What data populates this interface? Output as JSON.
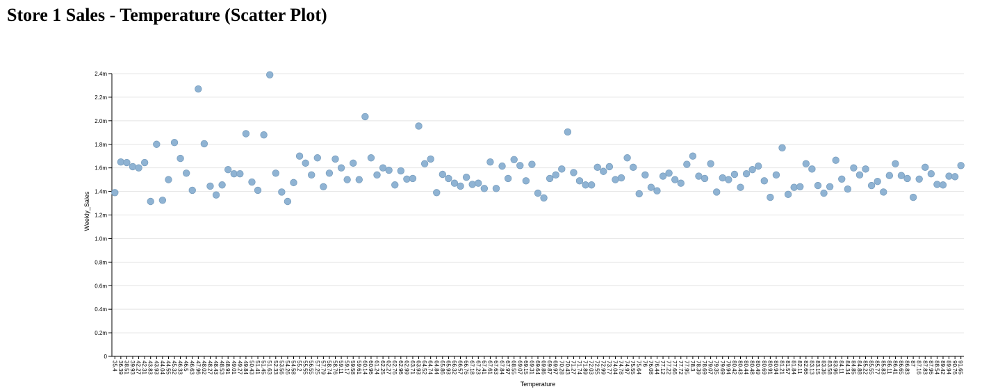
{
  "chart_data": {
    "type": "scatter",
    "title": "Store 1 Sales - Temperature (Scatter Plot)",
    "x_label": "Temperature",
    "y_label": "Weekly_Sales",
    "color": "#8fb3d3",
    "grid": true,
    "categories": [
      "35.4",
      "36.39",
      "38.51",
      "39.93",
      "42.27",
      "42.31",
      "43.83",
      "43.93",
      "44.04",
      "44.55",
      "45.32",
      "46.33",
      "46.5",
      "46.63",
      "47.96",
      "48.02",
      "48.27",
      "48.43",
      "48.53",
      "48.91",
      "49.01",
      "49.27",
      "49.84",
      "50.43",
      "51.41",
      "51.45",
      "51.63",
      "52.33",
      "53.56",
      "54.26",
      "54.58",
      "55.2",
      "55.55",
      "56.55",
      "57.25",
      "57.79",
      "58.74",
      "58.76",
      "59.11",
      "59.17",
      "59.58",
      "59.61",
      "60.14",
      "60.96",
      "61.24",
      "62.25",
      "62.27",
      "62.76",
      "62.96",
      "62.99",
      "63.71",
      "63.93",
      "64.52",
      "64.74",
      "64.84",
      "65.86",
      "65.93",
      "66.32",
      "66.57",
      "66.76",
      "67.18",
      "67.23",
      "67.41",
      "67.61",
      "67.63",
      "67.84",
      "67.97",
      "68.55",
      "69.07",
      "69.15",
      "69.31",
      "69.64",
      "69.86",
      "69.87",
      "69.97",
      "70.28",
      "70.43",
      "71.27",
      "71.74",
      "71.89",
      "72.03",
      "72.55",
      "72.99",
      "73.77",
      "74.04",
      "74.78",
      "74.97",
      "75.55",
      "75.64",
      "76",
      "76.08",
      "76.44",
      "77.12",
      "77.22",
      "77.66",
      "77.72",
      "77.95",
      "78.3",
      "78.39",
      "78.69",
      "79.07",
      "79.35",
      "79.69",
      "79.94",
      "80.42",
      "80.43",
      "80.44",
      "80.48",
      "80.49",
      "80.69",
      "80.91",
      "80.94",
      "81.21",
      "81.57",
      "81.84",
      "82.11",
      "82.66",
      "83.13",
      "83.15",
      "83.36",
      "83.58",
      "83.96",
      "84.11",
      "84.34",
      "84.85",
      "84.88",
      "85.22",
      "85.55",
      "85.77",
      "85.83",
      "86.11",
      "86.41",
      "86.65",
      "86.83",
      "87",
      "87.16",
      "87.83",
      "87.96",
      "88.54",
      "89.42",
      "89.94",
      "90.76",
      "91.65"
    ],
    "values": [
      1390000,
      1650000,
      1645000,
      1610000,
      1600000,
      1645000,
      1315000,
      1800000,
      1325000,
      1500000,
      1815000,
      1680000,
      1555000,
      1410000,
      2270000,
      1805000,
      1445000,
      1370000,
      1455000,
      1585000,
      1550000,
      1550000,
      1890000,
      1480000,
      1410000,
      1880000,
      2390000,
      1555000,
      1395000,
      1315000,
      1475000,
      1700000,
      1640000,
      1540000,
      1685000,
      1440000,
      1555000,
      1675000,
      1600000,
      1500000,
      1640000,
      1500000,
      2035000,
      1685000,
      1540000,
      1600000,
      1580000,
      1455000,
      1575000,
      1505000,
      1510000,
      1955000,
      1635000,
      1675000,
      1390000,
      1545000,
      1510000,
      1470000,
      1445000,
      1520000,
      1460000,
      1470000,
      1425000,
      1650000,
      1425000,
      1615000,
      1510000,
      1670000,
      1620000,
      1490000,
      1630000,
      1385000,
      1345000,
      1510000,
      1540000,
      1590000,
      1905000,
      1560000,
      1490000,
      1455000,
      1455000,
      1605000,
      1570000,
      1610000,
      1500000,
      1515000,
      1685000,
      1605000,
      1380000,
      1540000,
      1435000,
      1405000,
      1530000,
      1555000,
      1500000,
      1470000,
      1630000,
      1700000,
      1530000,
      1510000,
      1635000,
      1395000,
      1515000,
      1500000,
      1545000,
      1435000,
      1550000,
      1585000,
      1615000,
      1490000,
      1350000,
      1540000,
      1770000,
      1375000,
      1435000,
      1440000,
      1635000,
      1590000,
      1450000,
      1385000,
      1440000,
      1665000,
      1505000,
      1420000,
      1600000,
      1540000,
      1590000,
      1450000,
      1485000,
      1395000,
      1535000,
      1635000,
      1535000,
      1510000,
      1350000,
      1505000,
      1605000,
      1550000,
      1460000,
      1455000,
      1530000,
      1525000,
      1620000
    ],
    "ylim": [
      0,
      2400000
    ],
    "yticks": [
      0,
      {
        "value": 200000,
        "label": "0.2m"
      },
      {
        "value": 400000,
        "label": "0.4m"
      },
      {
        "value": 600000,
        "label": "0.6m"
      },
      {
        "value": 800000,
        "label": "0.8m"
      },
      {
        "value": 1000000,
        "label": "1.0m"
      },
      {
        "value": 1200000,
        "label": "1.2m"
      },
      {
        "value": 1400000,
        "label": "1.4m"
      },
      {
        "value": 1600000,
        "label": "1.6m"
      },
      {
        "value": 1800000,
        "label": "1.8m"
      },
      {
        "value": 2000000,
        "label": "2.0m"
      },
      {
        "value": 2200000,
        "label": "2.2m"
      },
      {
        "value": 2400000,
        "label": "2.4m"
      }
    ]
  }
}
